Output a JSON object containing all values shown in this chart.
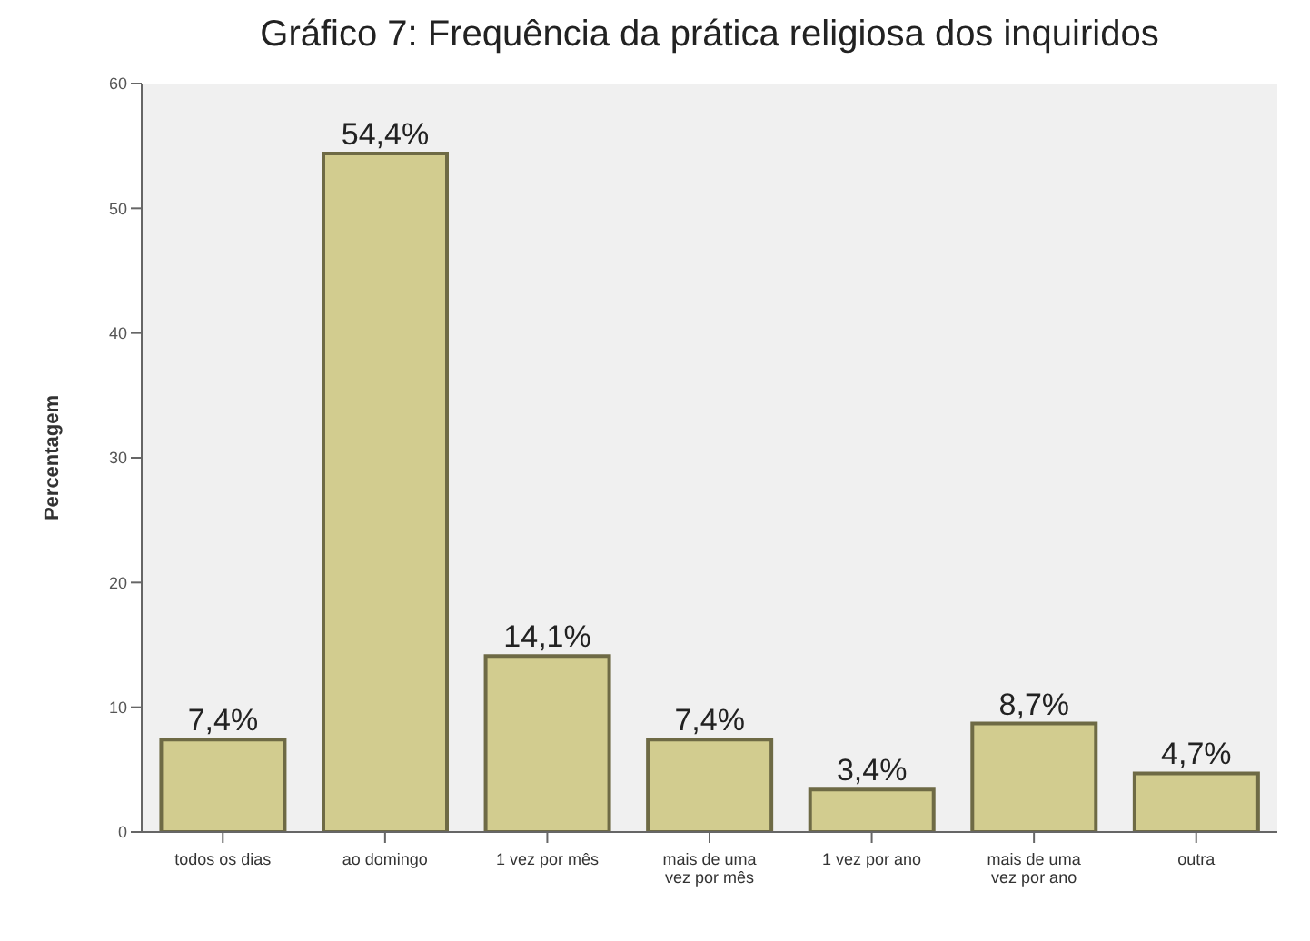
{
  "chart_data": {
    "type": "bar",
    "title": "Gráfico 7: Frequência da prática religiosa dos inquiridos",
    "ylabel": "Percentagem",
    "categories": [
      "todos os dias",
      "ao domingo",
      "1 vez por mês",
      "mais de uma vez por mês",
      "1 vez por ano",
      "mais de uma vez por ano",
      "outra"
    ],
    "values": [
      7.4,
      54.4,
      14.1,
      7.4,
      3.4,
      8.7,
      4.7
    ],
    "value_labels": [
      "7,4%",
      "54,4%",
      "14,1%",
      "7,4%",
      "3,4%",
      "8,7%",
      "4,7%"
    ],
    "color": "#d2cc8f",
    "ylim": [
      0,
      60
    ],
    "yticks": [
      0,
      10,
      20,
      30,
      40,
      50,
      60
    ],
    "grid": false
  }
}
